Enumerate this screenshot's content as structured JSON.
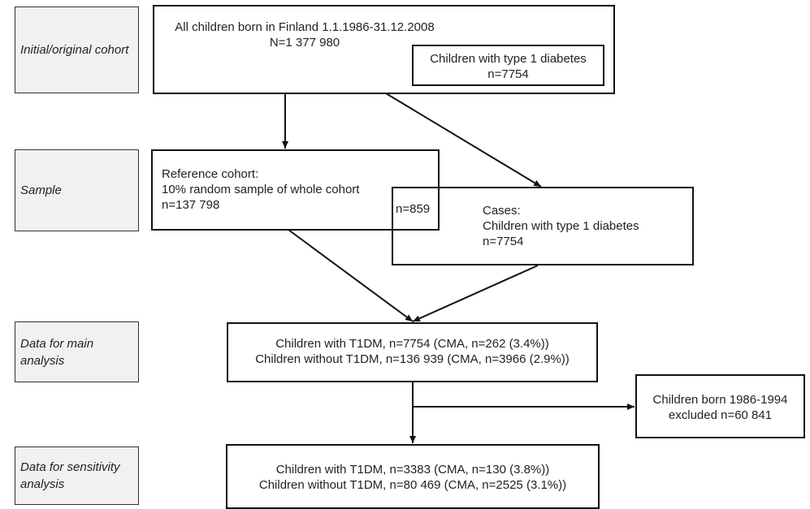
{
  "stages": {
    "initial": "Initial/original cohort",
    "sample": "Sample",
    "main": "Data for main analysis",
    "sensitivity": "Data for sensitivity analysis"
  },
  "boxes": {
    "all_children": {
      "line1": "All children born in Finland 1.1.1986-31.12.2008",
      "line2": "N=1 377 980"
    },
    "t1d_inner": {
      "line1": "Children with type 1 diabetes",
      "line2": "n=7754"
    },
    "reference": {
      "line1": "Reference cohort:",
      "line2": "10% random sample of whole cohort",
      "line3": "n=137 798"
    },
    "overlap": "n=859",
    "cases": {
      "line1": "Cases:",
      "line2": "Children with type 1 diabetes",
      "line3": "n=7754"
    },
    "main_analysis": {
      "line1": "Children with T1DM, n=7754 (CMA, n=262 (3.4%))",
      "line2": "Children without T1DM, n=136 939 (CMA, n=3966 (2.9%))"
    },
    "excluded": {
      "line1": "Children born 1986-1994",
      "line2": "excluded n=60 841"
    },
    "sensitivity_analysis": {
      "line1": "Children with T1DM, n=3383 (CMA, n=130 (3.8%))",
      "line2": "Children without T1DM, n=80 469 (CMA, n=2525 (3.1%))"
    }
  },
  "colors": {
    "stage_fill": "#f1f1f1",
    "box_border": "#111111",
    "text": "#222222"
  }
}
